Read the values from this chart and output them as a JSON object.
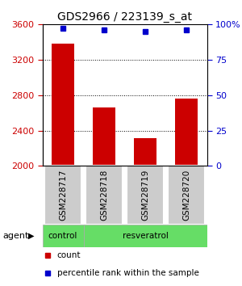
{
  "title": "GDS2966 / 223139_s_at",
  "samples": [
    "GSM228717",
    "GSM228718",
    "GSM228719",
    "GSM228720"
  ],
  "counts": [
    3380,
    2660,
    2310,
    2760
  ],
  "percentiles": [
    97,
    96,
    95,
    96
  ],
  "ylim_left": [
    2000,
    3600
  ],
  "ylim_right": [
    0,
    100
  ],
  "yticks_left": [
    2000,
    2400,
    2800,
    3200,
    3600
  ],
  "yticks_right": [
    0,
    25,
    50,
    75,
    100
  ],
  "bar_color": "#cc0000",
  "dot_color": "#0000cc",
  "agent_color": "#66dd66",
  "left_tick_color": "#cc0000",
  "right_tick_color": "#0000cc",
  "bar_width": 0.55,
  "label_box_color": "#cccccc",
  "fig_width": 3.0,
  "fig_height": 3.54,
  "dpi": 100
}
